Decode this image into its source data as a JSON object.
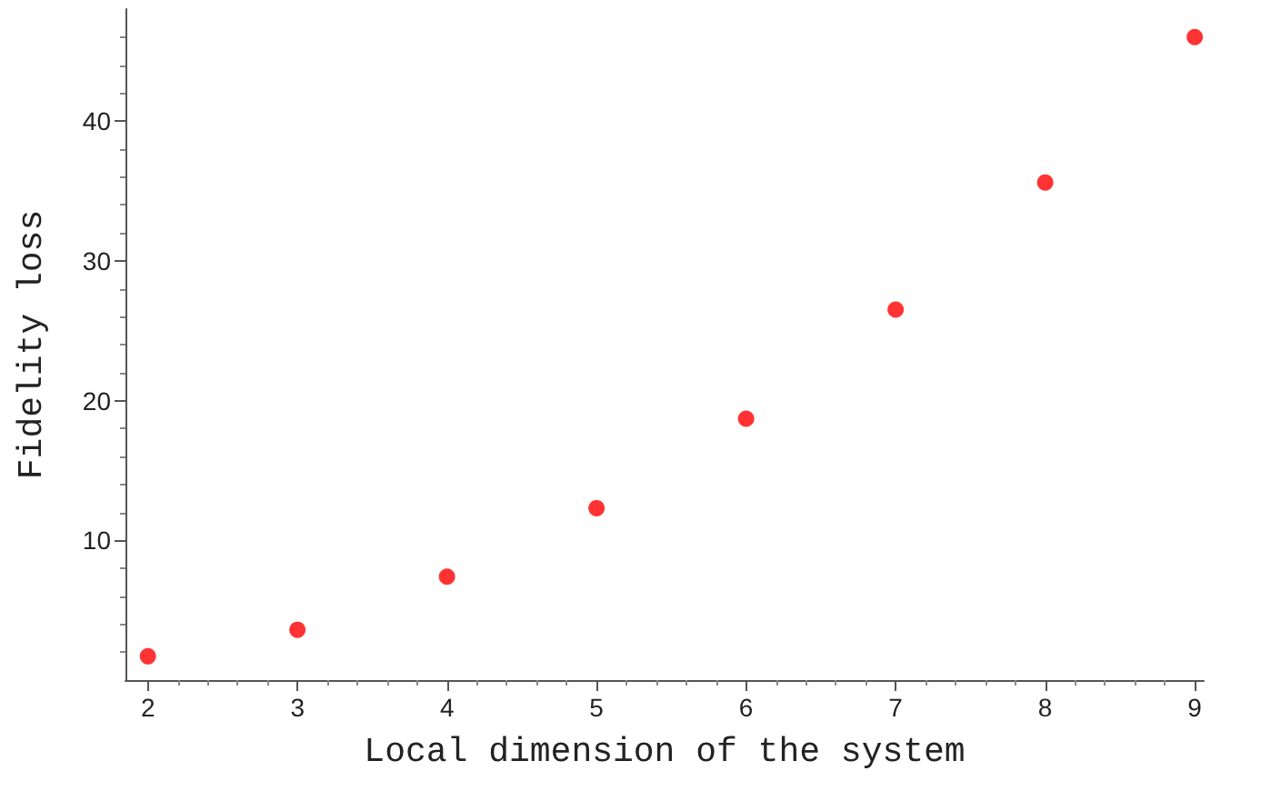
{
  "chart_data": {
    "type": "scatter",
    "xlabel": "Local dimension of the system",
    "ylabel": "Fidelity loss",
    "x": [
      2,
      3,
      4,
      5,
      6,
      7,
      8,
      9
    ],
    "series": [
      {
        "color": "#ff0000",
        "values": [
          1.7,
          3.6,
          7.4,
          12.3,
          18.7,
          26.5,
          35.6,
          46.0
        ]
      }
    ],
    "xlim": [
      1.85,
      9.06
    ],
    "xticks": [
      2,
      3,
      4,
      5,
      6,
      7,
      8,
      9
    ],
    "ylim": [
      0,
      48
    ],
    "yticks": [
      10,
      20,
      30,
      40
    ],
    "grid": false,
    "marker": "circle"
  }
}
